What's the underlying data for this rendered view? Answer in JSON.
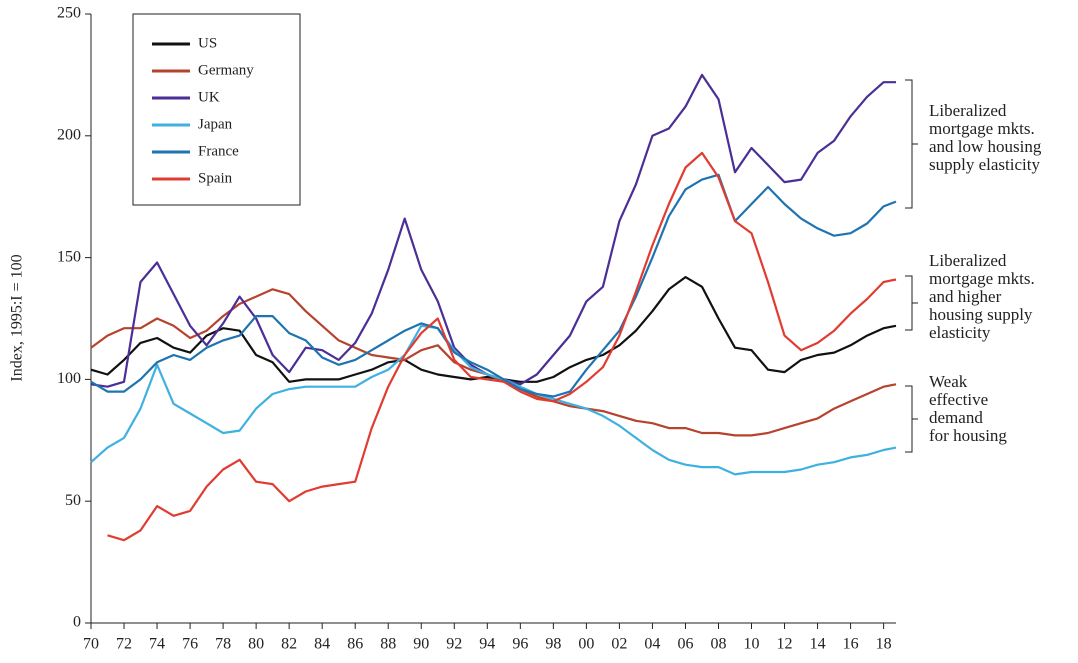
{
  "chart_data": {
    "type": "line",
    "y_label": "Index, 1995:I = 100",
    "x": [
      1970,
      1971,
      1972,
      1973,
      1974,
      1975,
      1976,
      1977,
      1978,
      1979,
      1980,
      1981,
      1982,
      1983,
      1984,
      1985,
      1986,
      1987,
      1988,
      1989,
      1990,
      1991,
      1992,
      1993,
      1994,
      1995,
      1996,
      1997,
      1998,
      1999,
      2000,
      2001,
      2002,
      2003,
      2004,
      2005,
      2006,
      2007,
      2008,
      2009,
      2010,
      2011,
      2012,
      2013,
      2014,
      2015,
      2016,
      2017,
      2018,
      2018.75
    ],
    "series": [
      {
        "name": "US",
        "color": "#111111",
        "values": [
          104,
          102,
          108,
          115,
          117,
          113,
          111,
          118,
          121,
          120,
          110,
          107,
          99,
          100,
          100,
          100,
          102,
          104,
          107,
          108,
          104,
          102,
          101,
          100,
          101,
          100,
          99,
          99,
          101,
          105,
          108,
          110,
          114,
          120,
          128,
          137,
          142,
          138,
          125,
          113,
          112,
          104,
          103,
          108,
          110,
          111,
          114,
          118,
          121,
          122
        ]
      },
      {
        "name": "Germany",
        "color": "#b5432d",
        "values": [
          113,
          118,
          121,
          121,
          125,
          122,
          117,
          120,
          126,
          131,
          134,
          137,
          135,
          128,
          122,
          116,
          113,
          110,
          109,
          108,
          112,
          114,
          107,
          104,
          102,
          99,
          96,
          93,
          91,
          89,
          88,
          87,
          85,
          83,
          82,
          80,
          80,
          78,
          78,
          77,
          77,
          78,
          80,
          82,
          84,
          88,
          91,
          94,
          97,
          98
        ]
      },
      {
        "name": "UK",
        "color": "#4b2e96",
        "values": [
          98,
          97,
          99,
          140,
          148,
          135,
          122,
          114,
          123,
          134,
          125,
          110,
          103,
          113,
          112,
          108,
          115,
          127,
          145,
          166,
          145,
          132,
          113,
          106,
          102,
          100,
          98,
          102,
          110,
          118,
          132,
          138,
          165,
          180,
          200,
          203,
          212,
          225,
          215,
          185,
          195,
          188,
          181,
          182,
          193,
          198,
          208,
          216,
          222,
          222
        ]
      },
      {
        "name": "Japan",
        "color": "#3fb1e0",
        "values": [
          66,
          72,
          76,
          88,
          106,
          90,
          86,
          82,
          78,
          79,
          88,
          94,
          96,
          97,
          97,
          97,
          97,
          101,
          104,
          110,
          122,
          121,
          112,
          105,
          102,
          100,
          97,
          94,
          92,
          90,
          88,
          85,
          81,
          76,
          71,
          67,
          65,
          64,
          64,
          61,
          62,
          62,
          62,
          63,
          65,
          66,
          68,
          69,
          71,
          72
        ]
      },
      {
        "name": "France",
        "color": "#1d74b0",
        "values": [
          99,
          95,
          95,
          100,
          107,
          110,
          108,
          113,
          116,
          118,
          126,
          126,
          119,
          116,
          109,
          106,
          108,
          112,
          116,
          120,
          123,
          121,
          111,
          107,
          104,
          100,
          96,
          94,
          93,
          95,
          104,
          112,
          120,
          134,
          150,
          167,
          178,
          182,
          184,
          165,
          172,
          179,
          172,
          166,
          162,
          159,
          160,
          164,
          171,
          173
        ]
      },
      {
        "name": "Spain",
        "color": "#e03c31",
        "values": [
          null,
          36,
          34,
          38,
          48,
          44,
          46,
          56,
          63,
          67,
          58,
          57,
          50,
          54,
          56,
          57,
          58,
          80,
          97,
          110,
          119,
          125,
          108,
          101,
          100,
          99,
          95,
          92,
          91,
          94,
          99,
          105,
          118,
          136,
          155,
          172,
          187,
          193,
          183,
          165,
          160,
          140,
          118,
          112,
          115,
          120,
          127,
          133,
          140,
          141
        ]
      }
    ],
    "xlim": [
      1970,
      2018.75
    ],
    "ylim": [
      0,
      250
    ],
    "xticks": [
      {
        "value": 1970,
        "label": "70"
      },
      {
        "value": 1972,
        "label": "72"
      },
      {
        "value": 1974,
        "label": "74"
      },
      {
        "value": 1976,
        "label": "76"
      },
      {
        "value": 1978,
        "label": "78"
      },
      {
        "value": 1980,
        "label": "80"
      },
      {
        "value": 1982,
        "label": "82"
      },
      {
        "value": 1984,
        "label": "84"
      },
      {
        "value": 1986,
        "label": "86"
      },
      {
        "value": 1988,
        "label": "88"
      },
      {
        "value": 1990,
        "label": "90"
      },
      {
        "value": 1992,
        "label": "92"
      },
      {
        "value": 1994,
        "label": "94"
      },
      {
        "value": 1996,
        "label": "96"
      },
      {
        "value": 1998,
        "label": "98"
      },
      {
        "value": 2000,
        "label": "00"
      },
      {
        "value": 2002,
        "label": "02"
      },
      {
        "value": 2004,
        "label": "04"
      },
      {
        "value": 2006,
        "label": "06"
      },
      {
        "value": 2008,
        "label": "08"
      },
      {
        "value": 2010,
        "label": "10"
      },
      {
        "value": 2012,
        "label": "12"
      },
      {
        "value": 2014,
        "label": "14"
      },
      {
        "value": 2016,
        "label": "16"
      },
      {
        "value": 2018,
        "label": "18"
      }
    ],
    "yticks": [
      0,
      50,
      100,
      150,
      200,
      250
    ],
    "annotations": [
      [
        "Liberalized",
        "mortgage mkts.",
        "and low housing",
        "supply elasticity"
      ],
      [
        "Liberalized",
        "mortgage mkts.",
        "and higher",
        "housing supply",
        "elasticity"
      ],
      [
        "Weak",
        "effective",
        "demand",
        "for housing"
      ]
    ]
  }
}
